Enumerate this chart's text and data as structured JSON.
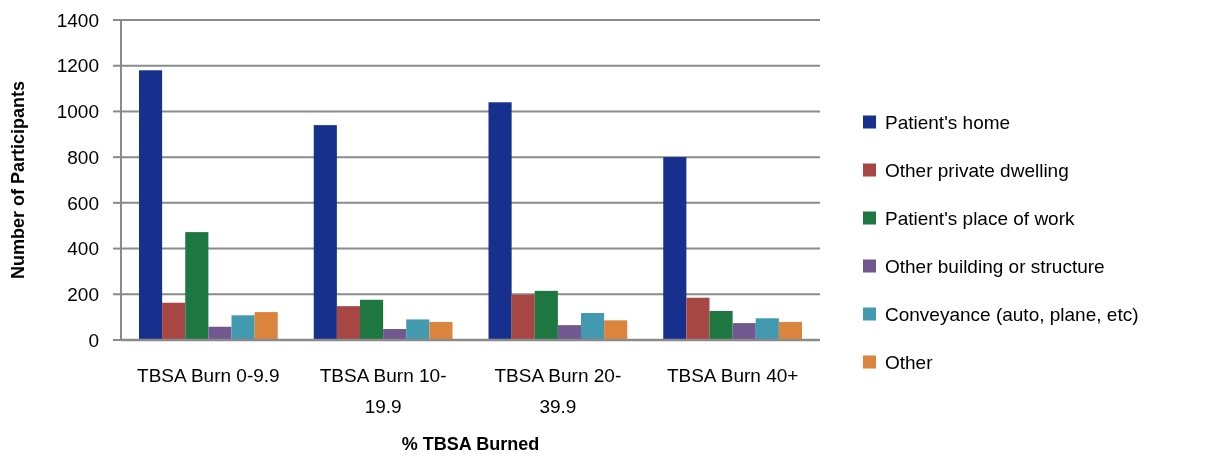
{
  "chart_data": {
    "type": "bar",
    "xlabel": "% TBSA Burned",
    "ylabel": "Number of Participants",
    "categories": [
      "TBSA Burn 0-9.9",
      "TBSA Burn 10-19.9",
      "TBSA Burn 20-39.9",
      "TBSA Burn 40+"
    ],
    "series": [
      {
        "name": "Patient's home",
        "color": "#17308d",
        "values": [
          1180,
          940,
          1040,
          800
        ]
      },
      {
        "name": "Other private dwelling",
        "color": "#a84644",
        "values": [
          163,
          148,
          198,
          185
        ]
      },
      {
        "name": "Patient's place of work",
        "color": "#1e7640",
        "values": [
          472,
          176,
          215,
          127
        ]
      },
      {
        "name": "Other building or structure",
        "color": "#715891",
        "values": [
          58,
          48,
          65,
          74
        ]
      },
      {
        "name": "Conveyance (auto, plane, etc)",
        "color": "#4299b0",
        "values": [
          108,
          90,
          118,
          95
        ]
      },
      {
        "name": "Other",
        "color": "#db843d",
        "values": [
          122,
          79,
          86,
          79
        ]
      }
    ],
    "ylim": [
      0,
      1400
    ],
    "yticks": [
      0,
      200,
      400,
      600,
      800,
      1000,
      1200,
      1400
    ],
    "grid": "y",
    "legend": "right"
  }
}
